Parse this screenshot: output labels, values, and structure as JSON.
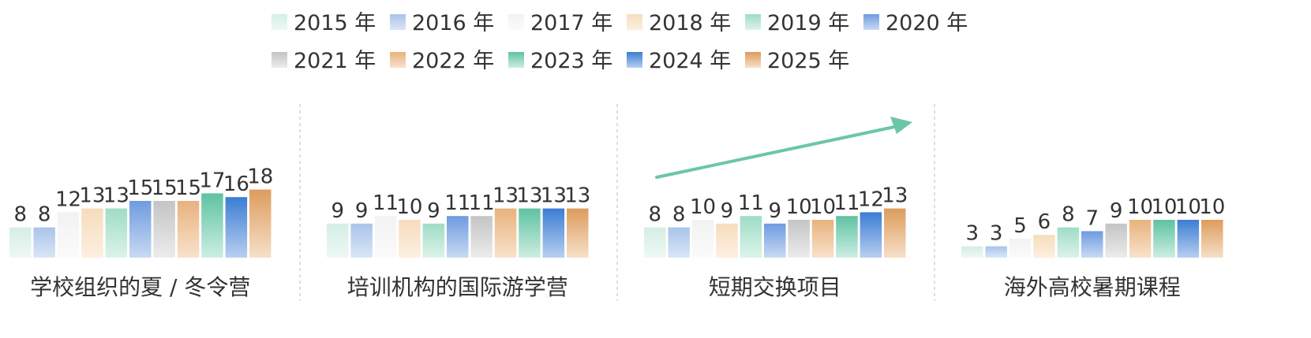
{
  "chart_data": {
    "type": "bar",
    "series": [
      {
        "name": "2015 年",
        "values": [
          8,
          9,
          8,
          3
        ]
      },
      {
        "name": "2016 年",
        "values": [
          8,
          9,
          8,
          3
        ]
      },
      {
        "name": "2017 年",
        "values": [
          12,
          11,
          10,
          5
        ]
      },
      {
        "name": "2018 年",
        "values": [
          13,
          10,
          9,
          6
        ]
      },
      {
        "name": "2019 年",
        "values": [
          13,
          9,
          11,
          8
        ]
      },
      {
        "name": "2020 年",
        "values": [
          15,
          11,
          9,
          7
        ]
      },
      {
        "name": "2021 年",
        "values": [
          15,
          11,
          10,
          9
        ]
      },
      {
        "name": "2022 年",
        "values": [
          15,
          13,
          10,
          10
        ]
      },
      {
        "name": "2023 年",
        "values": [
          17,
          13,
          11,
          10
        ]
      },
      {
        "name": "2024 年",
        "values": [
          16,
          13,
          12,
          10
        ]
      },
      {
        "name": "2025 年",
        "values": [
          18,
          13,
          13,
          10
        ]
      }
    ],
    "categories": [
      "学校组织的夏 / 冬令营",
      "培训机构的国际游学营",
      "短期交换项目",
      "海外高校暑期课程"
    ],
    "legend_position": "top",
    "grid": false,
    "annotations": [
      {
        "type": "arrow",
        "group": "短期交换项目",
        "direction": "up-right",
        "color": "#6cc5aa"
      }
    ],
    "series_colors": [
      [
        "#d4eee4",
        "#eef8f4"
      ],
      [
        "#a9c3ea",
        "#dae6f7"
      ],
      [
        "#f2f2f2",
        "#fbfbfb"
      ],
      [
        "#f7dcbd",
        "#fcefe2"
      ],
      [
        "#9fdcc6",
        "#ddf3ea"
      ],
      [
        "#6e9be0",
        "#c9daf3"
      ],
      [
        "#c4c4c4",
        "#ececec"
      ],
      [
        "#e8b27c",
        "#f8e2cc"
      ],
      [
        "#5fc2a2",
        "#cdeee2"
      ],
      [
        "#3b7dd4",
        "#b8cff0"
      ],
      [
        "#dd9c5c",
        "#f6e0c9"
      ]
    ]
  }
}
